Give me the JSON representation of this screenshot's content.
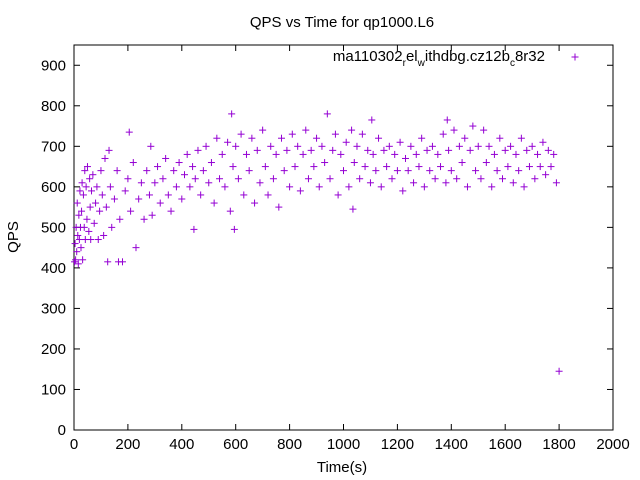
{
  "chart_data": {
    "type": "scatter",
    "title": "QPS vs Time for qp1000.L6",
    "xlabel": "Time(s)",
    "ylabel": "QPS",
    "xlim": [
      0,
      2000
    ],
    "ylim": [
      0,
      950
    ],
    "xticks": [
      0,
      200,
      400,
      600,
      800,
      1000,
      1200,
      1400,
      1600,
      1800,
      2000
    ],
    "yticks": [
      0,
      100,
      200,
      300,
      400,
      500,
      600,
      700,
      800,
      900
    ],
    "grid": false,
    "legend_position": "top-right",
    "series": [
      {
        "name": "ma110302",
        "name_sub1": "r",
        "name_mid1": "el",
        "name_sub2": "w",
        "name_mid2": "ithdbg.cz12b",
        "name_sub3": "c",
        "name_end": "8r32",
        "color": "#9400d3",
        "marker": "plus",
        "points": [
          [
            2,
            415
          ],
          [
            4,
            460
          ],
          [
            6,
            420
          ],
          [
            8,
            500
          ],
          [
            10,
            440
          ],
          [
            12,
            560
          ],
          [
            14,
            480
          ],
          [
            16,
            410
          ],
          [
            18,
            530
          ],
          [
            20,
            470
          ],
          [
            22,
            590
          ],
          [
            24,
            500
          ],
          [
            26,
            450
          ],
          [
            28,
            540
          ],
          [
            30,
            610
          ],
          [
            32,
            420
          ],
          [
            35,
            580
          ],
          [
            38,
            500
          ],
          [
            40,
            640
          ],
          [
            42,
            470
          ],
          [
            45,
            600
          ],
          [
            48,
            520
          ],
          [
            50,
            650
          ],
          [
            55,
            490
          ],
          [
            58,
            620
          ],
          [
            60,
            550
          ],
          [
            62,
            470
          ],
          [
            65,
            590
          ],
          [
            70,
            630
          ],
          [
            75,
            510
          ],
          [
            80,
            560
          ],
          [
            85,
            600
          ],
          [
            90,
            470
          ],
          [
            95,
            540
          ],
          [
            100,
            640
          ],
          [
            105,
            580
          ],
          [
            110,
            480
          ],
          [
            115,
            670
          ],
          [
            120,
            550
          ],
          [
            125,
            415
          ],
          [
            130,
            690
          ],
          [
            135,
            600
          ],
          [
            140,
            500
          ],
          [
            150,
            570
          ],
          [
            160,
            640
          ],
          [
            165,
            415
          ],
          [
            170,
            520
          ],
          [
            180,
            415
          ],
          [
            190,
            590
          ],
          [
            200,
            620
          ],
          [
            205,
            735
          ],
          [
            210,
            540
          ],
          [
            220,
            660
          ],
          [
            230,
            450
          ],
          [
            240,
            570
          ],
          [
            250,
            610
          ],
          [
            260,
            520
          ],
          [
            270,
            640
          ],
          [
            280,
            580
          ],
          [
            285,
            700
          ],
          [
            290,
            530
          ],
          [
            300,
            610
          ],
          [
            310,
            650
          ],
          [
            320,
            560
          ],
          [
            330,
            620
          ],
          [
            340,
            670
          ],
          [
            350,
            580
          ],
          [
            360,
            540
          ],
          [
            370,
            640
          ],
          [
            380,
            600
          ],
          [
            390,
            660
          ],
          [
            400,
            570
          ],
          [
            410,
            630
          ],
          [
            420,
            680
          ],
          [
            430,
            600
          ],
          [
            440,
            650
          ],
          [
            445,
            495
          ],
          [
            450,
            620
          ],
          [
            460,
            690
          ],
          [
            470,
            580
          ],
          [
            480,
            640
          ],
          [
            490,
            700
          ],
          [
            500,
            610
          ],
          [
            510,
            660
          ],
          [
            520,
            560
          ],
          [
            530,
            720
          ],
          [
            540,
            620
          ],
          [
            550,
            680
          ],
          [
            560,
            600
          ],
          [
            570,
            710
          ],
          [
            580,
            540
          ],
          [
            585,
            780
          ],
          [
            590,
            650
          ],
          [
            595,
            495
          ],
          [
            600,
            700
          ],
          [
            610,
            620
          ],
          [
            620,
            730
          ],
          [
            630,
            580
          ],
          [
            640,
            680
          ],
          [
            650,
            640
          ],
          [
            660,
            720
          ],
          [
            670,
            560
          ],
          [
            680,
            690
          ],
          [
            690,
            610
          ],
          [
            700,
            740
          ],
          [
            710,
            650
          ],
          [
            720,
            580
          ],
          [
            730,
            700
          ],
          [
            740,
            620
          ],
          [
            750,
            680
          ],
          [
            760,
            550
          ],
          [
            770,
            720
          ],
          [
            780,
            640
          ],
          [
            790,
            690
          ],
          [
            800,
            600
          ],
          [
            810,
            730
          ],
          [
            820,
            650
          ],
          [
            830,
            700
          ],
          [
            840,
            590
          ],
          [
            850,
            680
          ],
          [
            860,
            740
          ],
          [
            870,
            620
          ],
          [
            880,
            690
          ],
          [
            890,
            650
          ],
          [
            900,
            720
          ],
          [
            910,
            600
          ],
          [
            920,
            700
          ],
          [
            930,
            660
          ],
          [
            940,
            780
          ],
          [
            950,
            620
          ],
          [
            960,
            690
          ],
          [
            970,
            730
          ],
          [
            980,
            580
          ],
          [
            990,
            680
          ],
          [
            1000,
            640
          ],
          [
            1010,
            710
          ],
          [
            1020,
            600
          ],
          [
            1030,
            740
          ],
          [
            1035,
            545
          ],
          [
            1040,
            660
          ],
          [
            1050,
            700
          ],
          [
            1060,
            620
          ],
          [
            1070,
            730
          ],
          [
            1080,
            650
          ],
          [
            1090,
            690
          ],
          [
            1100,
            610
          ],
          [
            1105,
            765
          ],
          [
            1110,
            680
          ],
          [
            1120,
            640
          ],
          [
            1130,
            720
          ],
          [
            1140,
            600
          ],
          [
            1150,
            690
          ],
          [
            1160,
            650
          ],
          [
            1170,
            700
          ],
          [
            1180,
            620
          ],
          [
            1190,
            680
          ],
          [
            1200,
            640
          ],
          [
            1210,
            710
          ],
          [
            1220,
            590
          ],
          [
            1230,
            670
          ],
          [
            1240,
            640
          ],
          [
            1250,
            700
          ],
          [
            1260,
            610
          ],
          [
            1270,
            680
          ],
          [
            1280,
            650
          ],
          [
            1290,
            720
          ],
          [
            1300,
            600
          ],
          [
            1310,
            690
          ],
          [
            1320,
            640
          ],
          [
            1330,
            700
          ],
          [
            1340,
            620
          ],
          [
            1350,
            680
          ],
          [
            1360,
            650
          ],
          [
            1370,
            730
          ],
          [
            1380,
            610
          ],
          [
            1385,
            765
          ],
          [
            1390,
            690
          ],
          [
            1400,
            640
          ],
          [
            1410,
            740
          ],
          [
            1420,
            620
          ],
          [
            1430,
            700
          ],
          [
            1440,
            660
          ],
          [
            1450,
            720
          ],
          [
            1460,
            600
          ],
          [
            1470,
            690
          ],
          [
            1480,
            750
          ],
          [
            1490,
            640
          ],
          [
            1500,
            700
          ],
          [
            1510,
            620
          ],
          [
            1520,
            740
          ],
          [
            1530,
            660
          ],
          [
            1540,
            700
          ],
          [
            1550,
            600
          ],
          [
            1560,
            680
          ],
          [
            1570,
            640
          ],
          [
            1580,
            720
          ],
          [
            1590,
            620
          ],
          [
            1600,
            690
          ],
          [
            1610,
            650
          ],
          [
            1620,
            700
          ],
          [
            1630,
            610
          ],
          [
            1640,
            680
          ],
          [
            1650,
            640
          ],
          [
            1660,
            720
          ],
          [
            1670,
            600
          ],
          [
            1680,
            690
          ],
          [
            1690,
            650
          ],
          [
            1700,
            700
          ],
          [
            1710,
            620
          ],
          [
            1720,
            680
          ],
          [
            1730,
            650
          ],
          [
            1740,
            710
          ],
          [
            1750,
            630
          ],
          [
            1760,
            690
          ],
          [
            1770,
            650
          ],
          [
            1780,
            680
          ],
          [
            1790,
            610
          ],
          [
            1800,
            145
          ]
        ]
      }
    ]
  }
}
